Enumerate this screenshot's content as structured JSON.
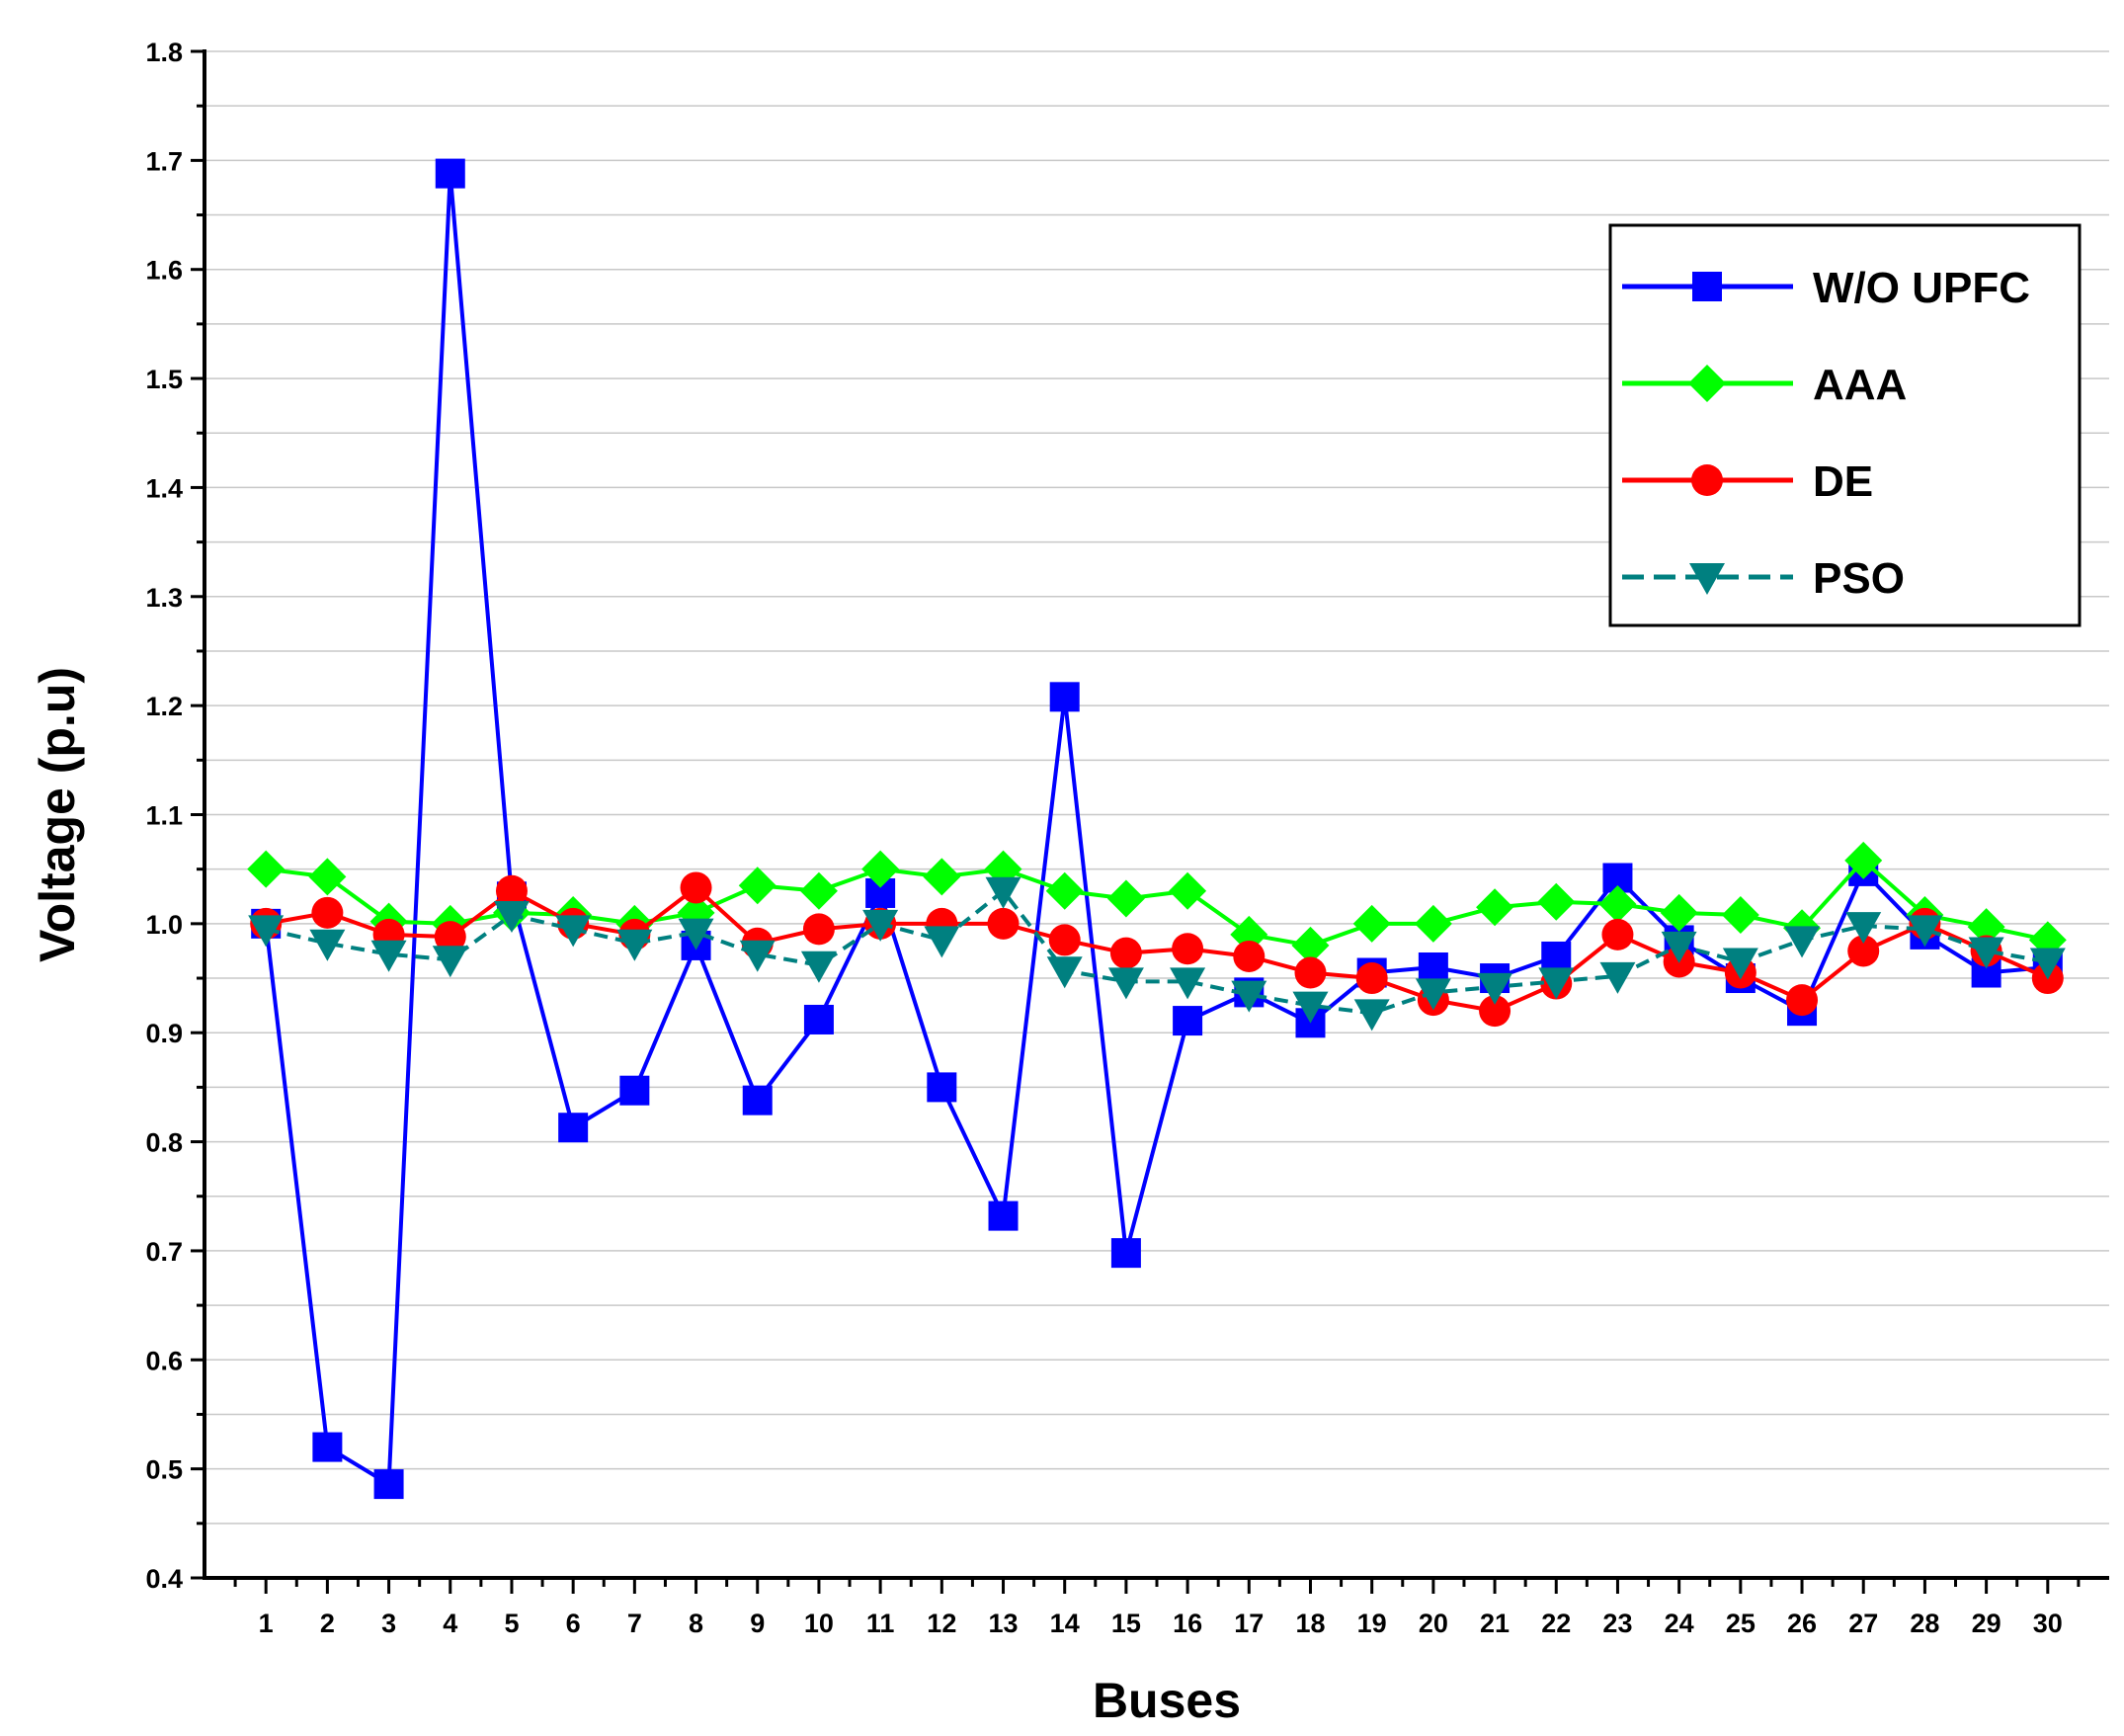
{
  "chart_data": {
    "type": "line",
    "title": "",
    "xlabel": "Buses",
    "ylabel": "Voltage (p.u)",
    "xlim": [
      0,
      31
    ],
    "ylim": [
      0.4,
      1.8
    ],
    "yticks": [
      "0.4",
      "0.5",
      "0.6",
      "0.7",
      "0.8",
      "0.9",
      "1.0",
      "1.1",
      "1.2",
      "1.3",
      "1.4",
      "1.5",
      "1.6",
      "1.7",
      "1.8"
    ],
    "categories": [
      1,
      2,
      3,
      4,
      5,
      6,
      7,
      8,
      9,
      10,
      11,
      12,
      13,
      14,
      15,
      16,
      17,
      18,
      19,
      20,
      21,
      22,
      23,
      24,
      25,
      26,
      27,
      28,
      29,
      30
    ],
    "grid": "horizontal",
    "legend_position": "top-right",
    "series": [
      {
        "name": "W/O UPFC",
        "color": "#0000ff",
        "marker": "square",
        "line_style": "solid",
        "values": [
          1.0,
          0.52,
          0.486,
          1.688,
          1.025,
          0.813,
          0.847,
          0.98,
          0.838,
          0.912,
          1.028,
          0.85,
          0.732,
          1.208,
          0.698,
          0.911,
          0.937,
          0.909,
          0.955,
          0.96,
          0.95,
          0.97,
          1.042,
          0.985,
          0.95,
          0.92,
          1.048,
          0.99,
          0.955,
          0.96
        ]
      },
      {
        "name": "AAA",
        "color": "#00ff00",
        "marker": "diamond",
        "line_style": "solid",
        "values": [
          1.05,
          1.043,
          1.002,
          1.0,
          1.01,
          1.008,
          1.0,
          1.01,
          1.035,
          1.03,
          1.05,
          1.043,
          1.05,
          1.03,
          1.023,
          1.03,
          0.99,
          0.98,
          1.0,
          1.0,
          1.015,
          1.02,
          1.018,
          1.01,
          1.008,
          0.996,
          1.058,
          1.008,
          0.997,
          0.985
        ]
      },
      {
        "name": "DE",
        "color": "#ff0000",
        "marker": "circle",
        "line_style": "solid",
        "values": [
          1.0,
          1.01,
          0.99,
          0.988,
          1.03,
          1.0,
          0.99,
          1.033,
          0.982,
          0.995,
          1.0,
          1.0,
          1.0,
          0.985,
          0.973,
          0.977,
          0.97,
          0.955,
          0.95,
          0.93,
          0.92,
          0.945,
          0.99,
          0.965,
          0.955,
          0.93,
          0.975,
          1.0,
          0.975,
          0.95
        ]
      },
      {
        "name": "PSO",
        "color": "#008080",
        "marker": "triangle-down",
        "line_style": "dashed",
        "values": [
          0.995,
          0.982,
          0.972,
          0.967,
          1.008,
          0.995,
          0.982,
          0.992,
          0.972,
          0.962,
          1.0,
          0.985,
          1.03,
          0.957,
          0.947,
          0.947,
          0.935,
          0.925,
          0.918,
          0.937,
          0.942,
          0.947,
          0.952,
          0.98,
          0.965,
          0.985,
          0.998,
          0.995,
          0.975,
          0.965
        ]
      }
    ]
  }
}
